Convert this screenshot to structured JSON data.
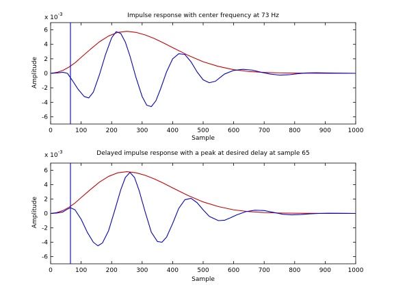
{
  "chart_data": [
    {
      "type": "line",
      "title": "Impulse response with center frequency at 73 Hz",
      "xlabel": "Sample",
      "ylabel": "Amplitude",
      "exponent_label": "x 10",
      "exponent_power": "-3",
      "xlim": [
        0,
        1000
      ],
      "ylim": [
        -7,
        7
      ],
      "xticks": [
        0,
        100,
        200,
        300,
        400,
        500,
        600,
        700,
        800,
        900,
        1000
      ],
      "yticks": [
        -6,
        -4,
        -2,
        0,
        2,
        4,
        6
      ],
      "vline_x": 65,
      "vline_color": "#0000cc",
      "series": [
        {
          "color": "#cc0000",
          "x": [
            0,
            20,
            40,
            60,
            80,
            100,
            130,
            160,
            190,
            220,
            250,
            280,
            310,
            340,
            370,
            400,
            450,
            500,
            550,
            600,
            650,
            700,
            750,
            800,
            850,
            900,
            950,
            1000
          ],
          "values": [
            0.0,
            0.12,
            0.4,
            0.85,
            1.45,
            2.2,
            3.3,
            4.35,
            5.15,
            5.65,
            5.8,
            5.65,
            5.3,
            4.8,
            4.2,
            3.55,
            2.5,
            1.6,
            0.95,
            0.5,
            0.25,
            0.12,
            0.06,
            0.03,
            0.02,
            0.01,
            0.01,
            0.0
          ]
        },
        {
          "color": "#0000cc",
          "x": [
            0,
            20,
            40,
            55,
            70,
            90,
            110,
            125,
            140,
            160,
            180,
            200,
            215,
            230,
            245,
            260,
            280,
            300,
            315,
            330,
            345,
            360,
            380,
            400,
            420,
            440,
            460,
            480,
            500,
            520,
            540,
            555,
            570,
            600,
            630,
            660,
            690,
            720,
            750,
            780,
            810,
            840,
            870,
            900,
            950,
            1000
          ],
          "values": [
            0.0,
            0.05,
            0.15,
            0.0,
            -0.9,
            -2.2,
            -3.2,
            -3.4,
            -2.6,
            -0.2,
            2.6,
            4.9,
            5.75,
            5.5,
            4.3,
            2.4,
            -0.6,
            -3.2,
            -4.4,
            -4.6,
            -3.8,
            -2.2,
            0.2,
            2.0,
            2.7,
            2.6,
            1.6,
            0.2,
            -0.9,
            -1.3,
            -1.1,
            -0.6,
            -0.1,
            0.4,
            0.55,
            0.45,
            0.15,
            -0.1,
            -0.25,
            -0.2,
            -0.05,
            0.05,
            0.08,
            0.05,
            0.02,
            0.0
          ]
        }
      ]
    },
    {
      "type": "line",
      "title": "Delayed impulse response with a peak at desired delay at sample 65",
      "xlabel": "Sample",
      "ylabel": "Amplitude",
      "exponent_label": "x 10",
      "exponent_power": "-3",
      "xlim": [
        0,
        1000
      ],
      "ylim": [
        -7,
        7
      ],
      "xticks": [
        0,
        100,
        200,
        300,
        400,
        500,
        600,
        700,
        800,
        900,
        1000
      ],
      "yticks": [
        -6,
        -4,
        -2,
        0,
        2,
        4,
        6
      ],
      "vline_x": 65,
      "vline_color": "#0000cc",
      "series": [
        {
          "color": "#cc0000",
          "x": [
            0,
            20,
            40,
            60,
            80,
            100,
            130,
            160,
            190,
            220,
            250,
            280,
            310,
            340,
            370,
            400,
            450,
            500,
            550,
            600,
            650,
            700,
            750,
            800,
            850,
            900,
            950,
            1000
          ],
          "values": [
            0.0,
            0.12,
            0.4,
            0.85,
            1.45,
            2.2,
            3.3,
            4.35,
            5.15,
            5.65,
            5.8,
            5.65,
            5.3,
            4.8,
            4.2,
            3.55,
            2.5,
            1.6,
            0.95,
            0.5,
            0.25,
            0.12,
            0.06,
            0.03,
            0.02,
            0.01,
            0.01,
            0.0
          ]
        },
        {
          "color": "#0000cc",
          "x": [
            0,
            20,
            40,
            55,
            65,
            80,
            100,
            120,
            140,
            155,
            170,
            190,
            210,
            230,
            245,
            260,
            275,
            290,
            310,
            330,
            350,
            365,
            380,
            400,
            420,
            440,
            460,
            480,
            500,
            520,
            550,
            570,
            590,
            610,
            640,
            670,
            700,
            730,
            760,
            790,
            820,
            850,
            880,
            910,
            950,
            1000
          ],
          "values": [
            0.0,
            0.05,
            0.2,
            0.6,
            0.8,
            0.5,
            -0.8,
            -2.6,
            -4.0,
            -4.5,
            -4.1,
            -2.4,
            0.4,
            3.3,
            5.0,
            5.7,
            5.0,
            3.2,
            0.2,
            -2.6,
            -3.9,
            -4.0,
            -3.3,
            -1.4,
            0.7,
            1.9,
            2.1,
            1.5,
            0.5,
            -0.4,
            -1.0,
            -0.95,
            -0.6,
            -0.2,
            0.25,
            0.45,
            0.4,
            0.15,
            -0.1,
            -0.2,
            -0.15,
            -0.05,
            0.0,
            0.03,
            0.02,
            0.0
          ]
        }
      ]
    }
  ]
}
